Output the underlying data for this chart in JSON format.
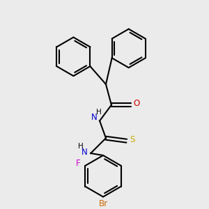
{
  "bg_color": "#ebebeb",
  "bond_color": "#000000",
  "bond_lw": 1.5,
  "atom_colors": {
    "N": "#0000cc",
    "O": "#cc0000",
    "S": "#ccaa00",
    "F": "#cc00cc",
    "Br": "#cc6600",
    "C": "#000000",
    "H": "#000000"
  },
  "font_size": 8.5,
  "font_size_small": 7.5
}
